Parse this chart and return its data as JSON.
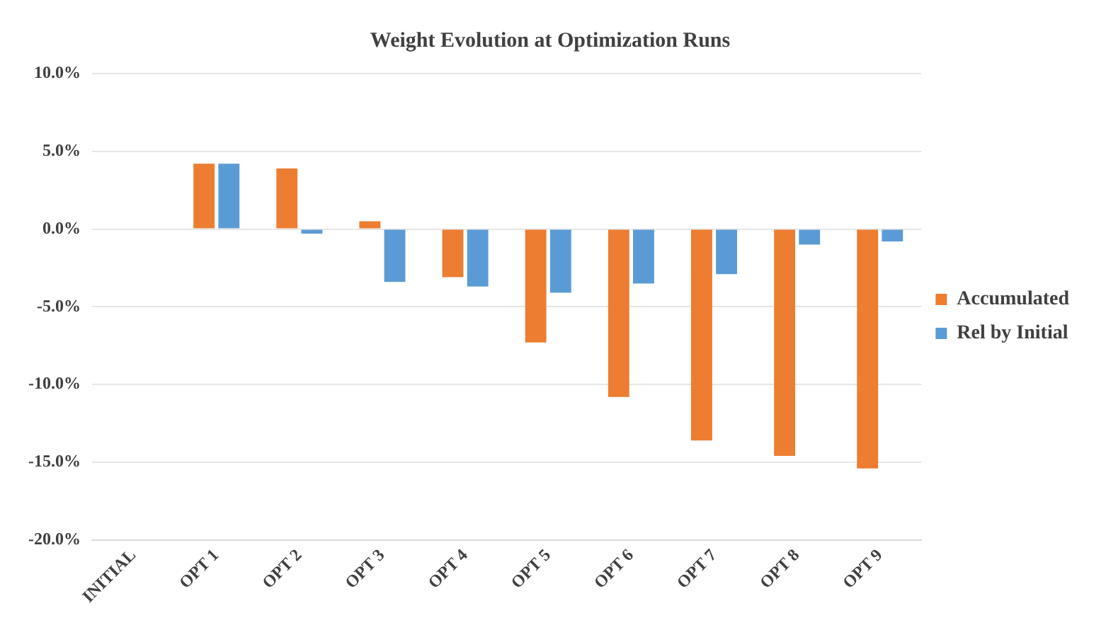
{
  "chart_data": {
    "type": "bar",
    "title": "Weight Evolution at Optimization Runs",
    "categories": [
      "INITIAL",
      "OPT 1",
      "OPT 2",
      "OPT 3",
      "OPT 4",
      "OPT 5",
      "OPT 6",
      "OPT 7",
      "OPT 8",
      "OPT 9"
    ],
    "series": [
      {
        "name": "Accumulated",
        "color": "#ed7d31",
        "values": [
          0,
          4.2,
          3.9,
          0.5,
          -3.1,
          -7.3,
          -10.8,
          -13.6,
          -14.6,
          -15.4
        ]
      },
      {
        "name": "Rel by Initial",
        "color": "#5b9bd5",
        "values": [
          0,
          4.2,
          -0.3,
          -3.4,
          -3.7,
          -4.1,
          -3.5,
          -2.9,
          -1.0,
          -0.8
        ]
      }
    ],
    "ylim": [
      -20,
      10
    ],
    "yticks": [
      {
        "value": -20,
        "label": "-20.0%"
      },
      {
        "value": -15,
        "label": "-15.0%"
      },
      {
        "value": -10,
        "label": "-10.0%"
      },
      {
        "value": -5,
        "label": "-5.0%"
      },
      {
        "value": 0,
        "label": "0.0%"
      },
      {
        "value": 5,
        "label": "5.0%"
      },
      {
        "value": 10,
        "label": "10.0%"
      }
    ],
    "grid": "y",
    "legend": "right"
  }
}
